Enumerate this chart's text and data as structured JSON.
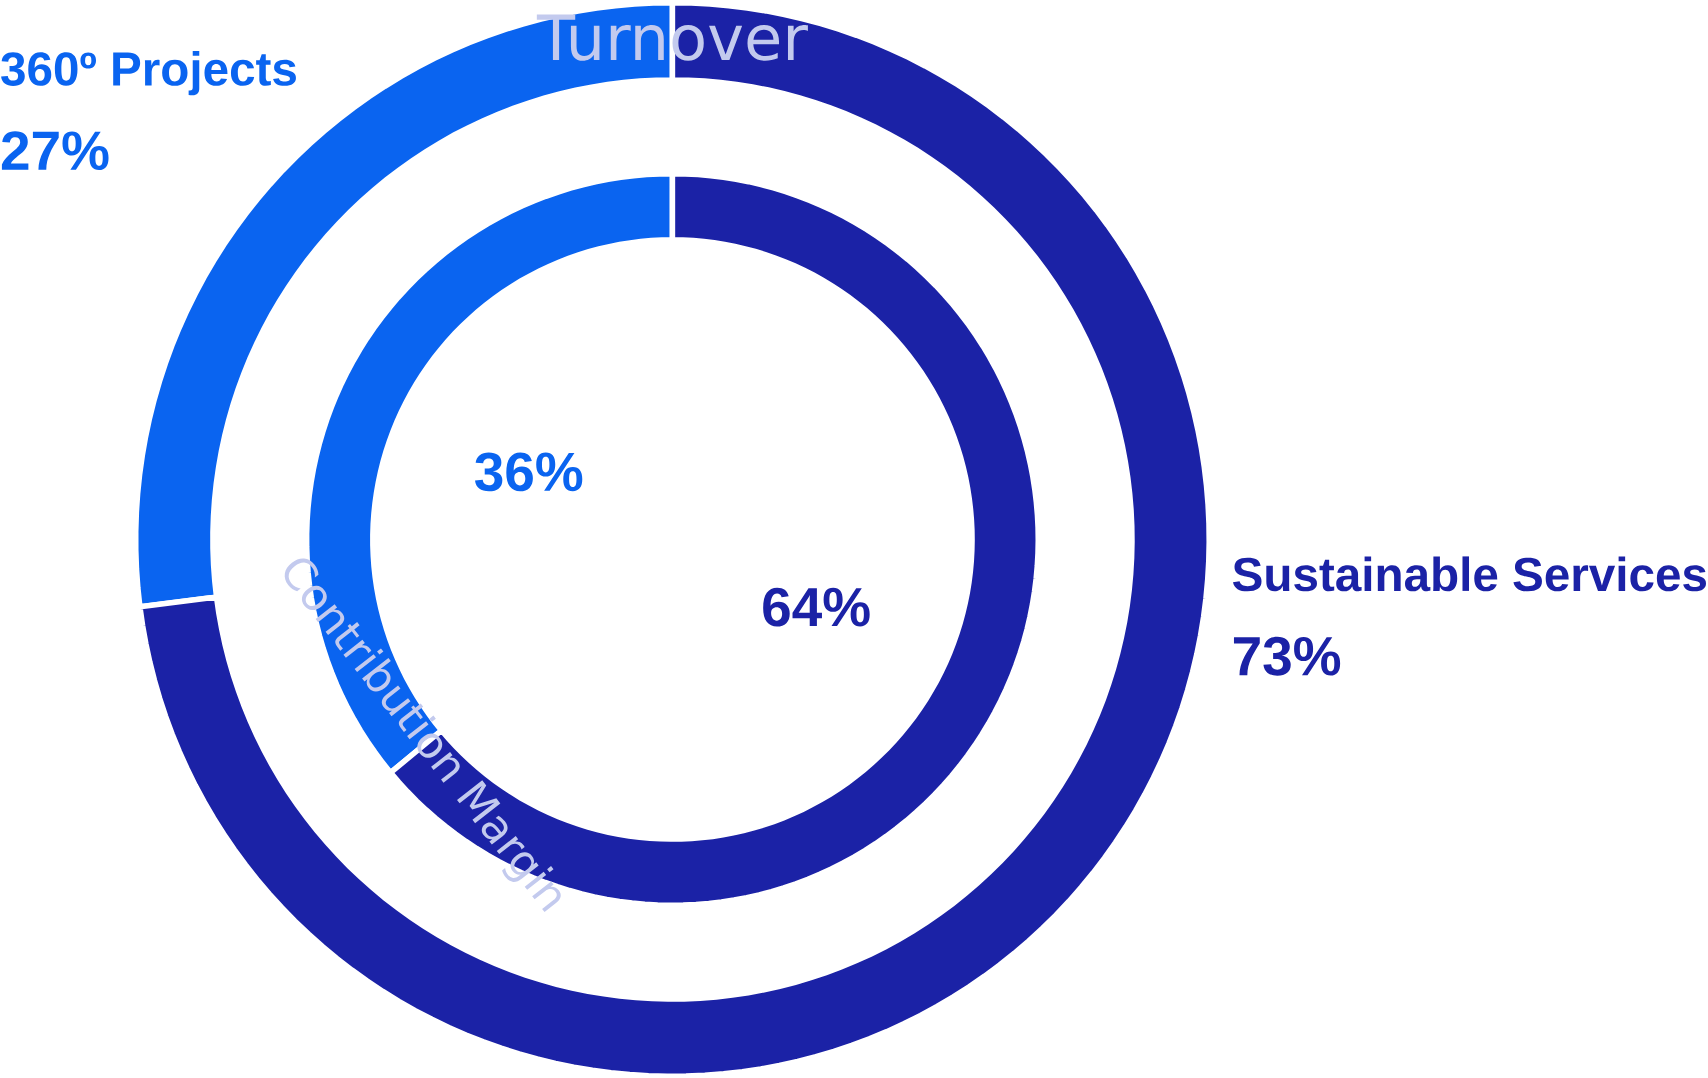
{
  "chart_data": {
    "type": "donut",
    "categories": [
      "360º Projects",
      "Sustainable Services"
    ],
    "series": [
      {
        "name": "Turnover",
        "values": [
          27,
          73
        ],
        "colors": [
          "#0a64f0",
          "#1b22a6"
        ],
        "value_labels": [
          "27%",
          "73%"
        ]
      },
      {
        "name": "Contribution Margin",
        "values": [
          36,
          64
        ],
        "colors": [
          "#0a64f0",
          "#1b22a6"
        ],
        "value_labels": [
          "36%",
          "64%"
        ]
      }
    ]
  }
}
